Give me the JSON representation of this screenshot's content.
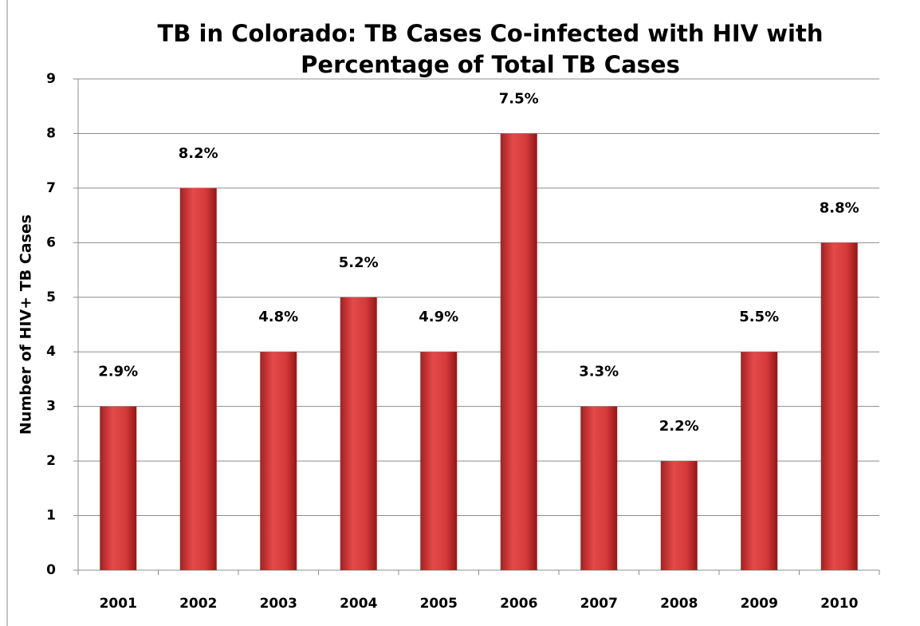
{
  "chart_data": {
    "type": "bar",
    "title": [
      "TB in Colorado: TB Cases Co-infected with HIV with",
      "Percentage of Total TB Cases"
    ],
    "ylabel": "Number of HIV+ TB Cases",
    "categories": [
      "2001",
      "2002",
      "2003",
      "2004",
      "2005",
      "2006",
      "2007",
      "2008",
      "2009",
      "2010"
    ],
    "values": [
      3,
      7,
      4,
      5,
      4,
      8,
      3,
      2,
      4,
      6
    ],
    "annotations": [
      "2.9%",
      "8.2%",
      "4.8%",
      "5.2%",
      "4.9%",
      "7.5%",
      "3.3%",
      "2.2%",
      "5.5%",
      "8.8%"
    ],
    "color": "#d63a3a",
    "ylim": [
      0,
      9
    ],
    "yticks": [
      0,
      1,
      2,
      3,
      4,
      5,
      6,
      7,
      8,
      9
    ],
    "grid": true
  }
}
